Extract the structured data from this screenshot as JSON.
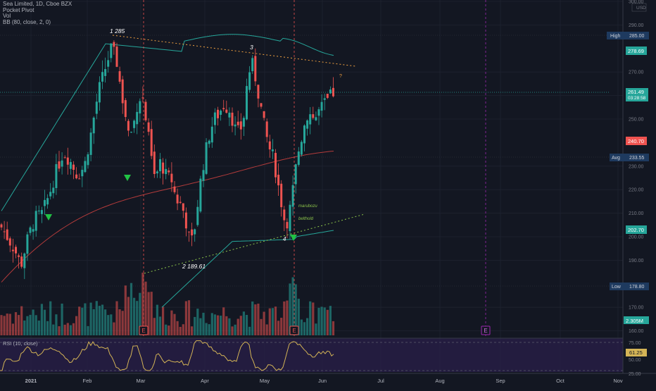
{
  "header": {
    "title": "Sea Limited, 1D, Cboe BZX",
    "indicators": [
      "Pocket Pivot",
      "Vol",
      "BB (80, close, 2, 0)"
    ]
  },
  "price_axis": {
    "currency": "USD",
    "ticks": [
      "300.00",
      "290.00",
      "270.00",
      "260.00",
      "250.00",
      "230.00",
      "220.00",
      "210.00",
      "200.00",
      "190.00",
      "170.00",
      "160.00"
    ],
    "top_tick": "300.00"
  },
  "price_labels": {
    "high": {
      "label": "High",
      "value": "285.00"
    },
    "upper_band": "278.69",
    "current": "261.49",
    "countdown": "03:28:58",
    "mid_band": "240.70",
    "avg": {
      "label": "Avg",
      "value": "233.55"
    },
    "lower_band": "202.70",
    "low": {
      "label": "Low",
      "value": "178.80"
    },
    "volume": "2.305M"
  },
  "annotations": {
    "pivot1": "1 285",
    "pivot3": "3",
    "pivot2": "2 189.61",
    "pivot4": "4",
    "question": "?",
    "marubozu": "marubozu",
    "belthold": "belthold",
    "earnings": [
      "E",
      "E",
      "E"
    ]
  },
  "rsi": {
    "label": "RSI (10, close)",
    "value": "61.25",
    "ticks": [
      "75.00",
      "50.00",
      "25.00"
    ]
  },
  "time_axis": {
    "labels": [
      "2021",
      "Feb",
      "Mar",
      "Apr",
      "May",
      "Jun",
      "Jul",
      "Aug",
      "Sep",
      "Oct",
      "Nov"
    ]
  },
  "colors": {
    "background": "#131722",
    "up": "#26a69a",
    "down": "#ef5350",
    "rsi_bg": "#2a1f4a",
    "rsi_line": "#d4b456",
    "upper_band_label": "#26a69a",
    "mid_band_label": "#ef5350",
    "label_box": "#1e3a5f",
    "marker": "#21c244"
  }
}
